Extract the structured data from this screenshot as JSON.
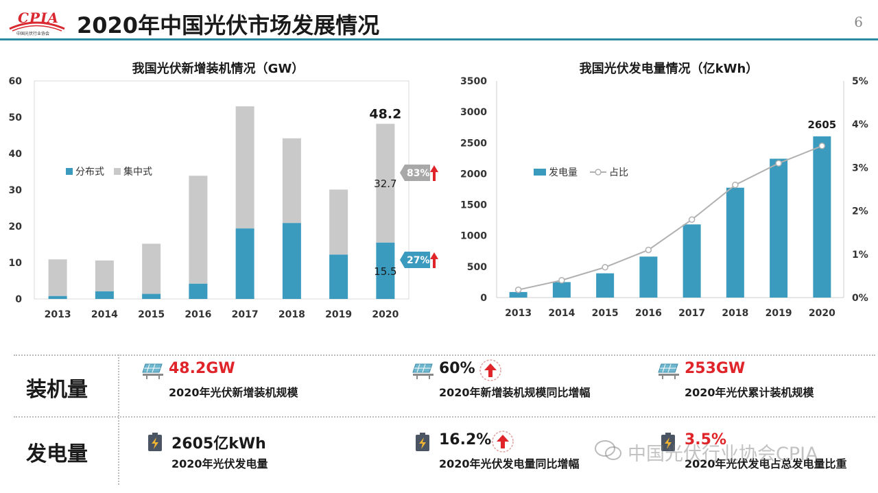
{
  "header": {
    "logo_text": "CPIA",
    "logo_sub": "中国光伏行业协会",
    "title": "2020年中国光伏市场发展情况",
    "page_number": "6"
  },
  "colors": {
    "blue": "#3a9bbf",
    "gray": "#c9c9c9",
    "red": "#e0252a",
    "line": "#b0b0b0",
    "rule": "#2a8ba0"
  },
  "chart_data": [
    {
      "type": "bar",
      "stacked": true,
      "title": "我国光伏新增装机情况（GW）",
      "categories": [
        "2013",
        "2014",
        "2015",
        "2016",
        "2017",
        "2018",
        "2019",
        "2020"
      ],
      "series": [
        {
          "name": "分布式",
          "values": [
            0.8,
            2.1,
            1.4,
            4.2,
            19.4,
            20.9,
            12.2,
            15.5
          ]
        },
        {
          "name": "集中式",
          "values": [
            10.1,
            8.5,
            13.8,
            29.7,
            33.6,
            23.3,
            17.9,
            32.7
          ]
        }
      ],
      "yticks": [
        "0",
        "10",
        "20",
        "30",
        "40",
        "50",
        "60"
      ],
      "ylim": [
        0,
        60
      ],
      "legend": "left",
      "annotations": {
        "total_2020": "48.2",
        "central_2020": "32.7",
        "dist_2020": "15.5",
        "central_share": "83%",
        "dist_share": "27%"
      }
    },
    {
      "type": "bar",
      "title": "我国光伏发电量情况（亿kWh）",
      "categories": [
        "2013",
        "2014",
        "2015",
        "2016",
        "2017",
        "2018",
        "2019",
        "2020"
      ],
      "series": [
        {
          "name": "发电量",
          "type": "bar",
          "values": [
            90,
            250,
            392,
            662,
            1182,
            1775,
            2243,
            2605
          ]
        },
        {
          "name": "占比",
          "type": "line",
          "axis": "right",
          "values": [
            0.18,
            0.4,
            0.7,
            1.1,
            1.8,
            2.6,
            3.1,
            3.5
          ]
        }
      ],
      "yticks": [
        "0",
        "500",
        "1000",
        "1500",
        "2000",
        "2500",
        "3000",
        "3500"
      ],
      "ylim": [
        0,
        3500
      ],
      "y2ticks": [
        "0%",
        "1%",
        "2%",
        "3%",
        "4%",
        "5%"
      ],
      "y2lim": [
        0,
        5
      ],
      "legend": "left",
      "annotations": {
        "label_2020": "2605"
      }
    }
  ],
  "summary": {
    "rows": [
      {
        "label": "装机量",
        "items": [
          {
            "value": "48.2GW",
            "desc": "2020年光伏新增装机规模",
            "icon": "solar-panel-icon",
            "style": "red"
          },
          {
            "value": "60%",
            "desc": "2020年新增装机规模同比增幅",
            "icon": "up-arrow-icon",
            "style": "black"
          },
          {
            "value": "253GW",
            "desc": "2020年光伏累计装机规模",
            "icon": "solar-panel-icon",
            "style": "red"
          }
        ]
      },
      {
        "label": "发电量",
        "items": [
          {
            "value": "2605亿kWh",
            "desc": "2020年光伏发电量",
            "icon": "battery-icon",
            "style": "black"
          },
          {
            "value": "16.2%",
            "desc": "2020年光伏发电量同比增幅",
            "icon": "battery-icon",
            "style": "black"
          },
          {
            "value": "3.5%",
            "desc": "2020年光伏发电占总发电量比重",
            "icon": "battery-icon",
            "style": "red"
          }
        ]
      }
    ]
  },
  "watermark": "中国光伏行业协会CPIA"
}
